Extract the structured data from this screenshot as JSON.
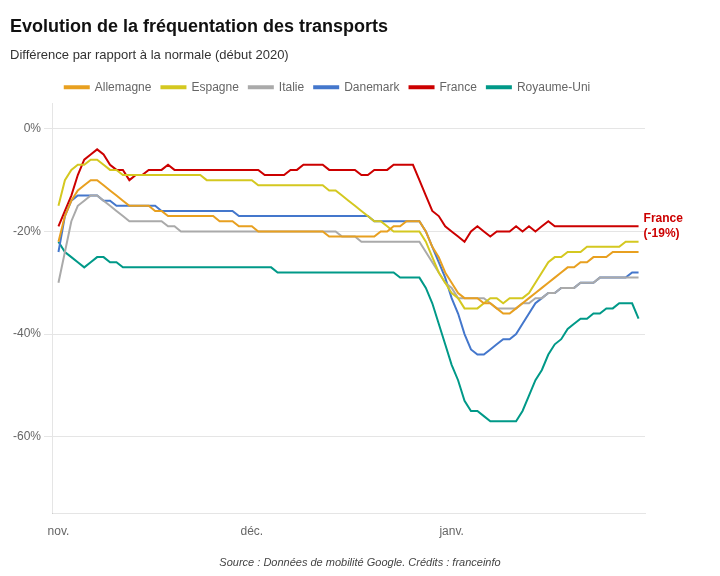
{
  "chart_data": {
    "type": "line",
    "title": "Evolution de la fréquentation des transports",
    "subtitle": "Différence par rapport à la normale (début 2020)",
    "source": "Source : Données de mobilité Google. Crédits : franceinfo",
    "annotations": [
      {
        "text": "France\n(-19%)",
        "x": 90,
        "y": -19,
        "color": "#cc0000"
      }
    ],
    "x": [
      0,
      1,
      2,
      3,
      4,
      5,
      6,
      7,
      8,
      9,
      10,
      11,
      12,
      13,
      14,
      15,
      16,
      17,
      18,
      19,
      20,
      21,
      22,
      23,
      24,
      25,
      26,
      27,
      28,
      29,
      30,
      31,
      32,
      33,
      34,
      35,
      36,
      37,
      38,
      39,
      40,
      41,
      42,
      43,
      44,
      45,
      46,
      47,
      48,
      49,
      50,
      51,
      52,
      53,
      54,
      55,
      56,
      57,
      58,
      59,
      60,
      61,
      62,
      63,
      64,
      65,
      66,
      67,
      68,
      69,
      70,
      71,
      72,
      73,
      74,
      75,
      76,
      77,
      78,
      79,
      80,
      81,
      82,
      83,
      84,
      85,
      86,
      87,
      88,
      89,
      90
    ],
    "xlim": [
      -1,
      91
    ],
    "xticks": [
      {
        "value": 0,
        "label": "nov."
      },
      {
        "value": 30,
        "label": "déc."
      },
      {
        "value": 61,
        "label": "janv."
      }
    ],
    "ylim": [
      -75,
      5
    ],
    "yticks": [
      {
        "value": 0,
        "label": "0%"
      },
      {
        "value": -20,
        "label": "-20%"
      },
      {
        "value": -40,
        "label": "-40%"
      },
      {
        "value": -60,
        "label": "-60%"
      }
    ],
    "grid": "y",
    "legend": "top",
    "series": [
      {
        "name": "Allemagne",
        "color": "#E8A020",
        "values": [
          -22,
          -17,
          -14,
          -12,
          -11,
          -10,
          -10,
          -11,
          -12,
          -13,
          -14,
          -15,
          -15,
          -15,
          -15,
          -16,
          -16,
          -17,
          -17,
          -17,
          -17,
          -17,
          -17,
          -17,
          -17,
          -18,
          -18,
          -18,
          -19,
          -19,
          -19,
          -20,
          -20,
          -20,
          -20,
          -20,
          -20,
          -20,
          -20,
          -20,
          -20,
          -20,
          -21,
          -21,
          -21,
          -21,
          -21,
          -21,
          -21,
          -21,
          -20,
          -20,
          -19,
          -19,
          -18,
          -18,
          -18,
          -20,
          -23,
          -25,
          -28,
          -30,
          -32,
          -33,
          -33,
          -33,
          -34,
          -34,
          -35,
          -36,
          -36,
          -35,
          -34,
          -33,
          -32,
          -31,
          -30,
          -29,
          -28,
          -27,
          -27,
          -26,
          -26,
          -25,
          -25,
          -25,
          -24,
          -24,
          -24,
          -24,
          -24
        ]
      },
      {
        "name": "Espagne",
        "color": "#D4C820",
        "values": [
          -15,
          -10,
          -8,
          -7,
          -7,
          -6,
          -6,
          -7,
          -8,
          -8,
          -9,
          -9,
          -9,
          -9,
          -9,
          -9,
          -9,
          -9,
          -9,
          -9,
          -9,
          -9,
          -9,
          -10,
          -10,
          -10,
          -10,
          -10,
          -10,
          -10,
          -10,
          -11,
          -11,
          -11,
          -11,
          -11,
          -11,
          -11,
          -11,
          -11,
          -11,
          -11,
          -12,
          -12,
          -13,
          -14,
          -15,
          -16,
          -17,
          -18,
          -18,
          -19,
          -20,
          -20,
          -20,
          -20,
          -20,
          -22,
          -25,
          -28,
          -30,
          -32,
          -33,
          -35,
          -35,
          -35,
          -34,
          -33,
          -33,
          -34,
          -33,
          -33,
          -33,
          -32,
          -30,
          -28,
          -26,
          -25,
          -25,
          -24,
          -24,
          -24,
          -23,
          -23,
          -23,
          -23,
          -23,
          -23,
          -22,
          -22,
          -22
        ]
      },
      {
        "name": "Italie",
        "color": "#AAAAAA",
        "values": [
          -30,
          -24,
          -18,
          -15,
          -14,
          -13,
          -13,
          -14,
          -15,
          -16,
          -17,
          -18,
          -18,
          -18,
          -18,
          -18,
          -18,
          -19,
          -19,
          -20,
          -20,
          -20,
          -20,
          -20,
          -20,
          -20,
          -20,
          -20,
          -20,
          -20,
          -20,
          -20,
          -20,
          -20,
          -20,
          -20,
          -20,
          -20,
          -20,
          -20,
          -20,
          -20,
          -20,
          -20,
          -21,
          -21,
          -21,
          -22,
          -22,
          -22,
          -22,
          -22,
          -22,
          -22,
          -22,
          -22,
          -22,
          -24,
          -26,
          -28,
          -30,
          -31,
          -33,
          -33,
          -33,
          -33,
          -33,
          -34,
          -35,
          -35,
          -35,
          -35,
          -34,
          -34,
          -33,
          -33,
          -32,
          -32,
          -31,
          -31,
          -31,
          -30,
          -30,
          -30,
          -29,
          -29,
          -29,
          -29,
          -29,
          -29,
          -29
        ]
      },
      {
        "name": "Danemark",
        "color": "#4477CC",
        "values": [
          -24,
          -17,
          -14,
          -13,
          -13,
          -13,
          -13,
          -14,
          -14,
          -15,
          -15,
          -15,
          -15,
          -15,
          -15,
          -15,
          -16,
          -16,
          -16,
          -16,
          -16,
          -16,
          -16,
          -16,
          -16,
          -16,
          -16,
          -16,
          -17,
          -17,
          -17,
          -17,
          -17,
          -17,
          -17,
          -17,
          -17,
          -17,
          -17,
          -17,
          -17,
          -17,
          -17,
          -17,
          -17,
          -17,
          -17,
          -17,
          -17,
          -18,
          -18,
          -18,
          -18,
          -18,
          -18,
          -18,
          -18,
          -20,
          -23,
          -26,
          -29,
          -33,
          -36,
          -40,
          -43,
          -44,
          -44,
          -43,
          -42,
          -41,
          -41,
          -40,
          -38,
          -36,
          -34,
          -33,
          -32,
          -32,
          -31,
          -31,
          -31,
          -30,
          -30,
          -30,
          -29,
          -29,
          -29,
          -29,
          -29,
          -28,
          -28
        ]
      },
      {
        "name": "France",
        "color": "#CC0000",
        "values": [
          -19,
          -16,
          -13,
          -9,
          -6,
          -5,
          -4,
          -5,
          -7,
          -8,
          -8,
          -10,
          -9,
          -9,
          -8,
          -8,
          -8,
          -7,
          -8,
          -8,
          -8,
          -8,
          -8,
          -8,
          -8,
          -8,
          -8,
          -8,
          -8,
          -8,
          -8,
          -8,
          -9,
          -9,
          -9,
          -9,
          -8,
          -8,
          -7,
          -7,
          -7,
          -7,
          -8,
          -8,
          -8,
          -8,
          -8,
          -9,
          -9,
          -8,
          -8,
          -8,
          -7,
          -7,
          -7,
          -7,
          -10,
          -13,
          -16,
          -17,
          -19,
          -20,
          -21,
          -22,
          -20,
          -19,
          -20,
          -21,
          -20,
          -20,
          -20,
          -19,
          -20,
          -19,
          -20,
          -19,
          -18,
          -19,
          -19,
          -19,
          -19,
          -19,
          -19,
          -19,
          -19,
          -19,
          -19,
          -19,
          -19,
          -19,
          -19
        ]
      },
      {
        "name": "Royaume-Uni",
        "color": "#009988",
        "values": [
          -22,
          -24,
          -25,
          -26,
          -27,
          -26,
          -25,
          -25,
          -26,
          -26,
          -27,
          -27,
          -27,
          -27,
          -27,
          -27,
          -27,
          -27,
          -27,
          -27,
          -27,
          -27,
          -27,
          -27,
          -27,
          -27,
          -27,
          -27,
          -27,
          -27,
          -27,
          -27,
          -27,
          -27,
          -28,
          -28,
          -28,
          -28,
          -28,
          -28,
          -28,
          -28,
          -28,
          -28,
          -28,
          -28,
          -28,
          -28,
          -28,
          -28,
          -28,
          -28,
          -28,
          -29,
          -29,
          -29,
          -29,
          -31,
          -34,
          -38,
          -42,
          -46,
          -49,
          -53,
          -55,
          -55,
          -56,
          -57,
          -57,
          -57,
          -57,
          -57,
          -55,
          -52,
          -49,
          -47,
          -44,
          -42,
          -41,
          -39,
          -38,
          -37,
          -37,
          -36,
          -36,
          -35,
          -35,
          -34,
          -34,
          -34,
          -37
        ]
      }
    ]
  }
}
